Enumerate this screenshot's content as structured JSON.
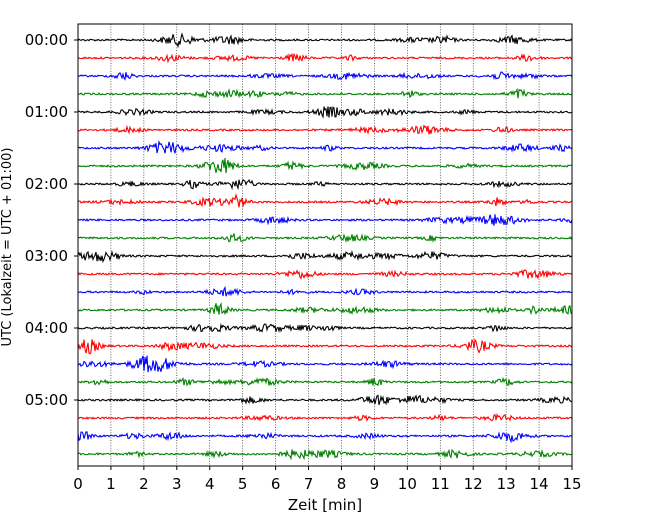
{
  "chart_data": {
    "type": "line",
    "title": "",
    "xlabel": "Zeit  [min]",
    "ylabel": "UTC (Lokalzeit = UTC + 01:00)",
    "xlim": [
      0,
      15
    ],
    "x_ticks": [
      "0",
      "1",
      "2",
      "3",
      "4",
      "5",
      "6",
      "7",
      "8",
      "9",
      "10",
      "11",
      "12",
      "13",
      "14",
      "15"
    ],
    "y_tick_labels": [
      "00:00",
      "01:00",
      "02:00",
      "03:00",
      "04:00",
      "05:00"
    ],
    "grid": "vertical dotted lines at each minute",
    "line_interval_min": 15,
    "trace_colors": [
      "#000000",
      "#ff0000",
      "#0000ff",
      "#008000"
    ],
    "series": [
      {
        "start": "00:00",
        "color": "#000000"
      },
      {
        "start": "00:15",
        "color": "#ff0000"
      },
      {
        "start": "00:30",
        "color": "#0000ff"
      },
      {
        "start": "00:45",
        "color": "#008000"
      },
      {
        "start": "01:00",
        "color": "#000000"
      },
      {
        "start": "01:15",
        "color": "#ff0000"
      },
      {
        "start": "01:30",
        "color": "#0000ff"
      },
      {
        "start": "01:45",
        "color": "#008000"
      },
      {
        "start": "02:00",
        "color": "#000000"
      },
      {
        "start": "02:15",
        "color": "#ff0000"
      },
      {
        "start": "02:30",
        "color": "#0000ff"
      },
      {
        "start": "02:45",
        "color": "#008000"
      },
      {
        "start": "03:00",
        "color": "#000000"
      },
      {
        "start": "03:15",
        "color": "#ff0000"
      },
      {
        "start": "03:30",
        "color": "#0000ff"
      },
      {
        "start": "03:45",
        "color": "#008000"
      },
      {
        "start": "04:00",
        "color": "#000000"
      },
      {
        "start": "04:15",
        "color": "#ff0000"
      },
      {
        "start": "04:30",
        "color": "#0000ff"
      },
      {
        "start": "04:45",
        "color": "#008000"
      },
      {
        "start": "05:00",
        "color": "#000000"
      },
      {
        "start": "05:15",
        "color": "#ff0000"
      },
      {
        "start": "05:30",
        "color": "#0000ff"
      },
      {
        "start": "05:45",
        "color": "#008000"
      }
    ]
  }
}
